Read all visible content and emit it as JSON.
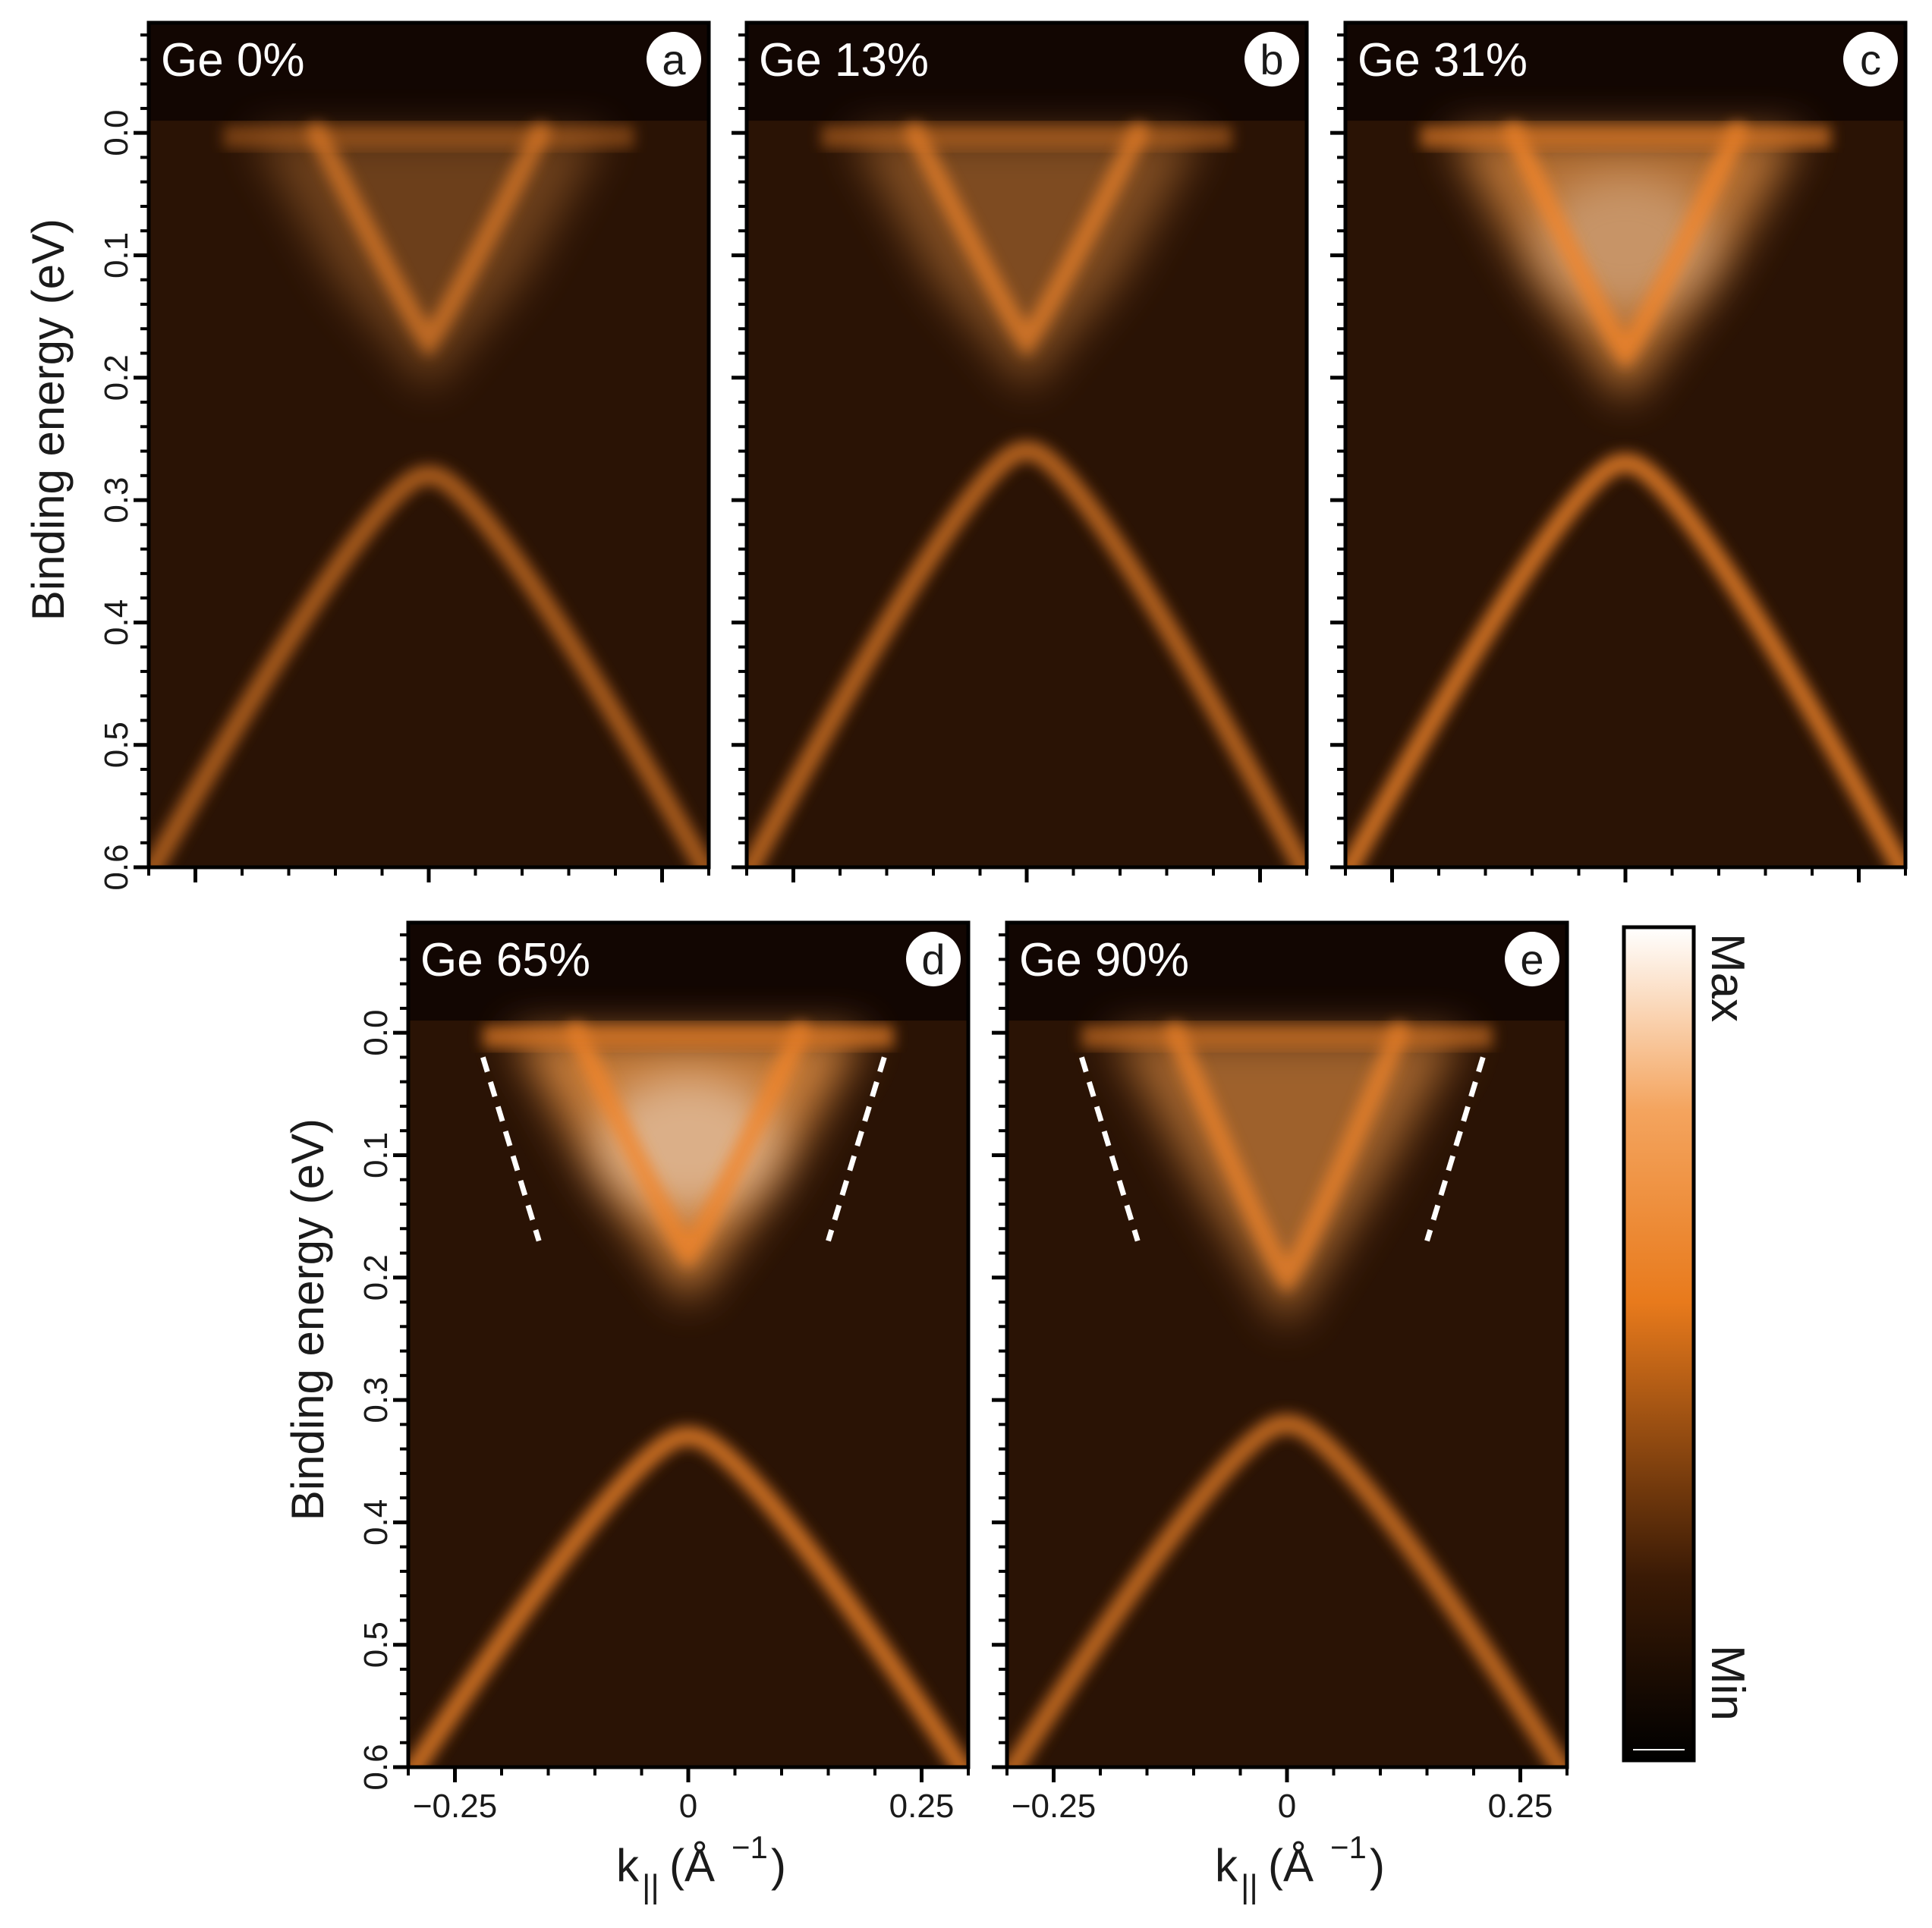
{
  "chart_data": {
    "type": "heatmap",
    "y_axis": {
      "label": "Binding energy (eV)",
      "range": [
        0.6,
        -0.09
      ],
      "ticks": [
        0.0,
        0.1,
        0.2,
        0.3,
        0.4,
        0.5,
        0.6
      ],
      "tick_labels": [
        "0.0",
        "0.1",
        "0.2",
        "0.3",
        "0.4",
        "0.5",
        "0.6"
      ]
    },
    "x_axis": {
      "label_main": "k",
      "label_sub": "||",
      "label_unit_open": "(Å",
      "label_unit_sup": "−1",
      "label_unit_close": ")",
      "range": [
        -0.3,
        0.3
      ],
      "ticks": [
        -0.25,
        0,
        0.25
      ],
      "tick_labels": [
        "−0.25",
        "0",
        "0.25"
      ]
    },
    "colorbar": {
      "max_label": "Max",
      "min_label": "Min",
      "colors": [
        "#000000",
        "#3a1a05",
        "#e87a1c",
        "#f4a45e",
        "#ffffff"
      ]
    },
    "panels": [
      {
        "letter": "a",
        "title": "Ge 0%",
        "dirac_point": 0.25,
        "upper_vertex": 0.17,
        "brightness": 0.62,
        "upper_fill": 0.15,
        "dashed_lines": false
      },
      {
        "letter": "b",
        "title": "Ge 13%",
        "dirac_point": 0.23,
        "upper_vertex": 0.17,
        "brightness": 0.68,
        "upper_fill": 0.3,
        "dashed_lines": false
      },
      {
        "letter": "c",
        "title": "Ge 31%",
        "dirac_point": 0.24,
        "upper_vertex": 0.18,
        "brightness": 0.8,
        "upper_fill": 0.8,
        "dashed_lines": false
      },
      {
        "letter": "d",
        "title": "Ge 65%",
        "dirac_point": 0.3,
        "upper_vertex": 0.18,
        "brightness": 0.78,
        "upper_fill": 0.95,
        "dashed_lines": true
      },
      {
        "letter": "e",
        "title": "Ge 90%",
        "dirac_point": 0.29,
        "upper_vertex": 0.2,
        "brightness": 0.72,
        "upper_fill": 0.6,
        "dashed_lines": true
      }
    ]
  }
}
